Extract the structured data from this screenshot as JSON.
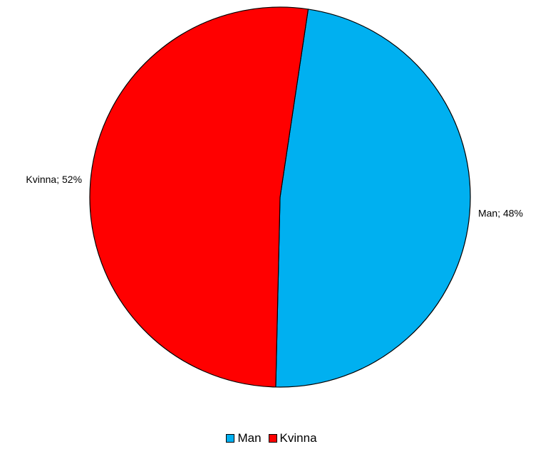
{
  "chart_data": {
    "type": "pie",
    "title": "",
    "slices": [
      {
        "name": "Man",
        "value": 48,
        "data_label": "Man; 48%",
        "color": "#00B0F0"
      },
      {
        "name": "Kvinna",
        "value": 52,
        "data_label": "Kvinna; 52%",
        "color": "#FF0000"
      }
    ],
    "legend_position": "bottom",
    "legend": [
      "Man",
      "Kvinna"
    ]
  }
}
